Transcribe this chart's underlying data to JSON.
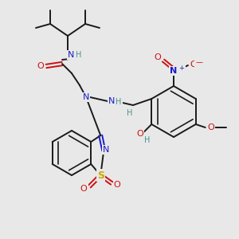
{
  "bg_color": "#e8e8e8",
  "figsize": [
    3.0,
    3.0
  ],
  "dpi": 100,
  "colors": {
    "bond": "#1a1a1a",
    "N": "#1a1acc",
    "O": "#cc1111",
    "S": "#ccaa00",
    "H": "#4a9090",
    "C": "#1a1a1a",
    "plus": "#1a1acc",
    "minus": "#cc1111"
  },
  "lw": 1.4
}
